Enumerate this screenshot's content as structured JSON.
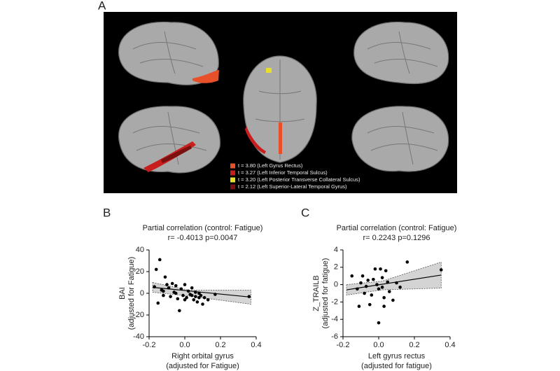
{
  "panel_a": {
    "label": "A",
    "legend": [
      {
        "label": "t = 3.80 (Left Gyrus Rectus)",
        "color": "#e8502a"
      },
      {
        "label": "t = 3.27 (Left  Inferior Temporal Sulcus)",
        "color": "#c81e1e"
      },
      {
        "label": "t = 3.20 (Left  Posterior Transverse Collateral Sulcus)",
        "color": "#e6e02a"
      },
      {
        "label": "t = 2.12 (Left Superior-Lateral Temporal Gyrus)",
        "color": "#7a1010"
      }
    ]
  },
  "chart_data": [
    {
      "type": "scatter",
      "panel_label": "B",
      "title": "Partial correlation (control: Fatigue)",
      "subtitle": "r= -0.4013 p=0.0047",
      "ylabel": [
        "BAI",
        "(adjusted for Fatigue)"
      ],
      "xlabel": [
        "Right orbital gyrus",
        "(adjusted for Fatigue)"
      ],
      "xlim": [
        -0.2,
        0.4
      ],
      "xticks": [
        -0.2,
        {
          "value": 0,
          "label": "0.0"
        },
        0.2,
        0.4
      ],
      "ylim": [
        -40,
        40
      ],
      "yticks": [
        -40,
        -20,
        0,
        20,
        40
      ],
      "x": [
        -0.17,
        -0.16,
        -0.14,
        -0.15,
        -0.13,
        -0.12,
        -0.11,
        -0.1,
        -0.09,
        -0.08,
        -0.07,
        -0.06,
        -0.05,
        -0.04,
        -0.03,
        -0.02,
        -0.01,
        0,
        0.01,
        0.02,
        0.03,
        0.04,
        0.05,
        0.06,
        0.07,
        0.08,
        0.09,
        0.1,
        0.11,
        0.13,
        0.17,
        0.36,
        -0.05,
        0,
        0.08,
        0.04,
        -0.12,
        0.06
      ],
      "y": [
        6,
        22,
        31,
        -9,
        3,
        -2,
        15,
        8,
        5,
        -3,
        9,
        1,
        7,
        -5,
        -16,
        4,
        -2,
        8,
        -4,
        2,
        -1,
        5,
        -6,
        -3,
        -8,
        0,
        -2,
        -10,
        -4,
        -6,
        -1,
        -3,
        0,
        -6,
        -4,
        -2,
        2,
        1
      ],
      "fit": {
        "x": [
          -0.18,
          0.37
        ],
        "y": [
          5.5,
          -3.5
        ]
      },
      "band": {
        "x": [
          -0.18,
          0.02,
          0.37
        ],
        "upper": [
          10,
          3,
          3
        ],
        "lower": [
          1,
          -2.5,
          -10
        ]
      },
      "color": "#000000",
      "band_color": "#d4d4d4"
    },
    {
      "type": "scatter",
      "panel_label": "C",
      "title": "Partial correlation (control: Fatigue)",
      "subtitle": "r= 0.2243 p=0.1296",
      "ylabel": [
        "Z_TRAILB",
        "(adjusted for fatigue)"
      ],
      "xlabel": [
        "Left gyrus rectus",
        "(adjusted for fatigue)"
      ],
      "xlim": [
        -0.2,
        0.4
      ],
      "xticks": [
        -0.2,
        {
          "value": 0,
          "label": "0.0"
        },
        0.2,
        0.4
      ],
      "ylim": [
        -6,
        4
      ],
      "yticks": [
        -6,
        -4,
        -2,
        0,
        2,
        4
      ],
      "x": [
        -0.15,
        -0.12,
        -0.11,
        -0.1,
        -0.09,
        -0.08,
        -0.06,
        -0.05,
        -0.04,
        -0.03,
        -0.02,
        -0.01,
        0,
        0,
        0.01,
        0.02,
        0.03,
        0.04,
        0.05,
        0.06,
        0.08,
        0.1,
        0.12,
        0.16,
        0.35,
        0.02,
        -0.07,
        0.03
      ],
      "y": [
        1,
        -0.5,
        -2.5,
        0.2,
        1,
        -1,
        0.5,
        -2.3,
        -1.2,
        0.6,
        1.8,
        0,
        -0.5,
        -4.4,
        1.8,
        -0.3,
        -1.5,
        1.6,
        0.3,
        -0.8,
        -1.8,
        0.2,
        -0.3,
        2.6,
        1.7,
        0.8,
        -0.2,
        -2.5
      ],
      "fit": {
        "x": [
          -0.18,
          0.35
        ],
        "y": [
          -0.6,
          1.1
        ]
      },
      "band": {
        "x": [
          -0.18,
          0.02,
          0.35
        ],
        "upper": [
          0,
          0.4,
          2.6
        ],
        "lower": [
          -1.2,
          -0.6,
          -0.4
        ]
      },
      "color": "#000000",
      "band_color": "#d4d4d4"
    }
  ]
}
